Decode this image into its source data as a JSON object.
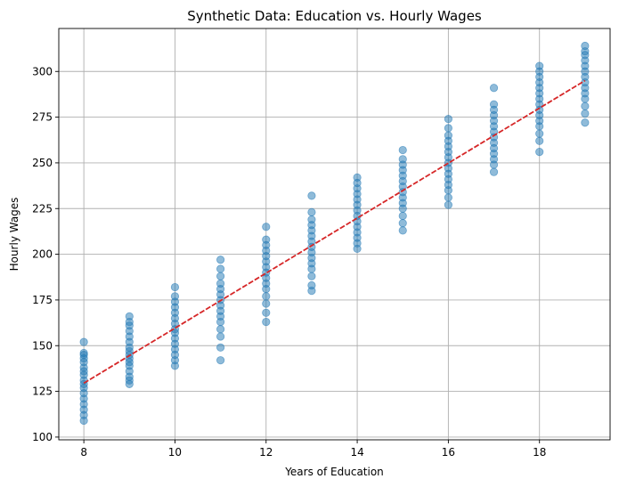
{
  "chart_data": {
    "type": "scatter",
    "title": "Synthetic Data: Education vs. Hourly Wages",
    "xlabel": "Years of Education",
    "ylabel": "Hourly Wages",
    "xlim": [
      7.45,
      19.55
    ],
    "ylim": [
      98.5,
      323.5
    ],
    "xticks": [
      8,
      10,
      12,
      14,
      16,
      18
    ],
    "yticks": [
      100,
      125,
      150,
      175,
      200,
      225,
      250,
      275,
      300
    ],
    "grid": true,
    "legend": "none",
    "colors": {
      "points": "#1f77b4",
      "fit_line": "#d62728"
    },
    "series": [
      {
        "kind": "points",
        "groups": [
          {
            "x": 8,
            "y": [
              109,
              112,
              115,
              118,
              121,
              124,
              127,
              129,
              131,
              134,
              136,
              138,
              141,
              143,
              145,
              146,
              152
            ]
          },
          {
            "x": 9,
            "y": [
              129,
              131,
              133,
              136,
              139,
              141,
              143,
              145,
              147,
              149,
              152,
              155,
              158,
              161,
              163,
              166
            ]
          },
          {
            "x": 10,
            "y": [
              139,
              142,
              145,
              148,
              151,
              154,
              157,
              159,
              162,
              165,
              168,
              171,
              174,
              177,
              182
            ]
          },
          {
            "x": 11,
            "y": [
              142,
              149,
              155,
              159,
              163,
              166,
              169,
              172,
              175,
              178,
              181,
              184,
              188,
              192,
              197
            ]
          },
          {
            "x": 12,
            "y": [
              163,
              168,
              173,
              177,
              181,
              184,
              187,
              190,
              193,
              196,
              199,
              202,
              205,
              208,
              215
            ]
          },
          {
            "x": 13,
            "y": [
              180,
              183,
              188,
              192,
              195,
              198,
              201,
              204,
              207,
              210,
              213,
              216,
              219,
              223,
              232
            ]
          },
          {
            "x": 14,
            "y": [
              203,
              206,
              209,
              212,
              215,
              218,
              221,
              224,
              227,
              230,
              233,
              236,
              239,
              242
            ]
          },
          {
            "x": 15,
            "y": [
              213,
              217,
              221,
              225,
              228,
              231,
              234,
              237,
              240,
              243,
              246,
              249,
              252,
              257
            ]
          },
          {
            "x": 16,
            "y": [
              227,
              231,
              235,
              238,
              241,
              244,
              247,
              250,
              253,
              256,
              259,
              262,
              265,
              269,
              274
            ]
          },
          {
            "x": 17,
            "y": [
              245,
              249,
              252,
              255,
              258,
              261,
              264,
              267,
              270,
              273,
              276,
              279,
              282,
              291
            ]
          },
          {
            "x": 18,
            "y": [
              256,
              262,
              266,
              270,
              273,
              276,
              279,
              282,
              285,
              288,
              291,
              294,
              297,
              300,
              303
            ]
          },
          {
            "x": 19,
            "y": [
              272,
              277,
              281,
              285,
              288,
              291,
              294,
              297,
              300,
              303,
              306,
              309,
              311,
              314
            ]
          }
        ]
      },
      {
        "kind": "fit_line",
        "x": [
          8,
          19
        ],
        "y": [
          129.5,
          295
        ]
      }
    ]
  }
}
